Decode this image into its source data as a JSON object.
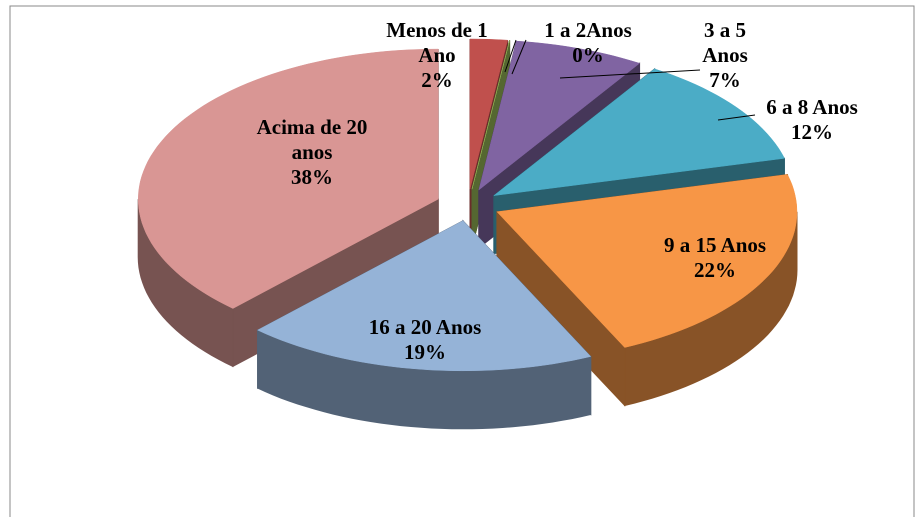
{
  "chart_data": {
    "type": "pie",
    "categories": [
      "Menos de 1 Ano",
      "1 a 2Anos",
      "3 a 5 Anos",
      "6 a 8 Anos",
      "9 a 15 Anos",
      "16 a 20 Anos",
      "Acima de 20 anos"
    ],
    "values": [
      2,
      0,
      7,
      12,
      22,
      19,
      38
    ],
    "value_labels": [
      "2%",
      "0%",
      "7%",
      "12%",
      "22%",
      "19%",
      "38%"
    ],
    "colors": [
      "#c0504d",
      "#9bbb59",
      "#8064a2",
      "#4bacc6",
      "#f79646",
      "#95b3d7",
      "#d99694"
    ]
  }
}
